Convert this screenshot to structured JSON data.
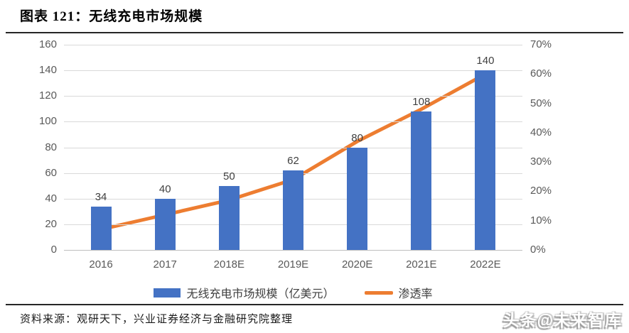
{
  "title": "图表 121：无线充电市场规模",
  "footer": {
    "source": "资料来源：观研天下，兴业证券经济与金融研究院整理",
    "watermark": "头条@未来智库"
  },
  "chart_data": {
    "type": "bar",
    "subtype": "bar-line-combo",
    "title": "无线充电市场规模",
    "categories": [
      "2016",
      "2017",
      "2018E",
      "2019E",
      "2020E",
      "2021E",
      "2022E"
    ],
    "series": [
      {
        "name": "无线充电市场规模（亿美元）",
        "type": "bar",
        "axis": "left",
        "color": "#4472C4",
        "values": [
          34,
          40,
          50,
          62,
          80,
          108,
          140
        ]
      },
      {
        "name": "渗透率",
        "type": "line",
        "axis": "right",
        "color": "#ED7D31",
        "unit": "%",
        "values": [
          7,
          12,
          17,
          24,
          37,
          48,
          60
        ]
      }
    ],
    "left_axis": {
      "min": 0,
      "max": 160,
      "step": 20,
      "tick_labels": [
        "0",
        "20",
        "40",
        "60",
        "80",
        "100",
        "120",
        "140",
        "160"
      ]
    },
    "right_axis": {
      "min": 0,
      "max": 70,
      "step": 10,
      "format": "percent",
      "tick_labels": [
        "0%",
        "10%",
        "20%",
        "30%",
        "40%",
        "50%",
        "60%",
        "70%"
      ]
    },
    "grid": true,
    "legend_position": "bottom",
    "data_labels": true
  },
  "colors": {
    "bar": "#4472C4",
    "line": "#ED7D31",
    "axis_text": "#595959",
    "data_label": "#404040",
    "gridline": "#D9D9D9",
    "rule": "#262626"
  }
}
